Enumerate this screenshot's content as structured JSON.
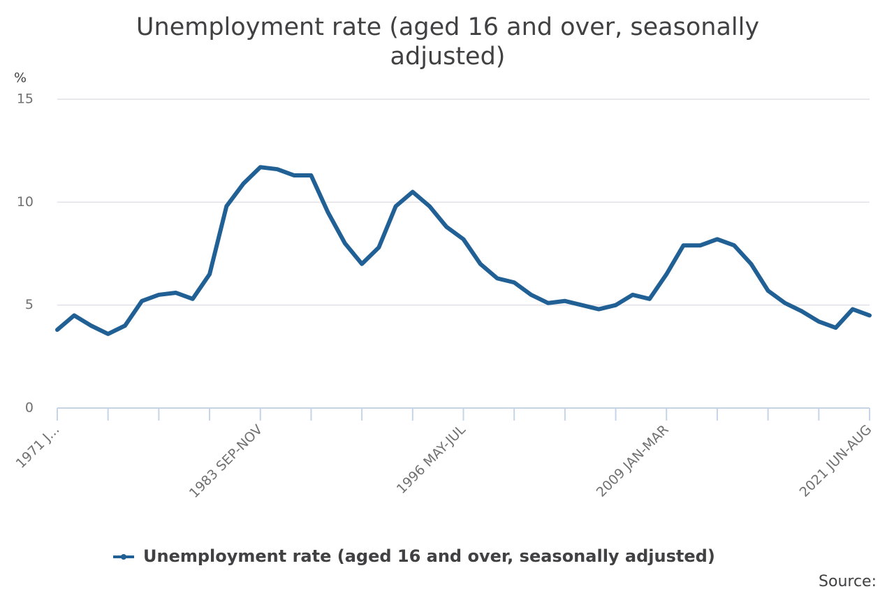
{
  "chart_data": {
    "type": "line",
    "title": "Unemployment rate (aged 16 and over, seasonally adjusted)",
    "y_unit": "%",
    "source": "Source:",
    "categories": [
      "1971 J...",
      null,
      null,
      null,
      null,
      null,
      null,
      null,
      null,
      null,
      null,
      null,
      "1983 SEP-NOV",
      null,
      null,
      null,
      null,
      null,
      null,
      null,
      null,
      null,
      null,
      null,
      "1996 MAY-JUL",
      null,
      null,
      null,
      null,
      null,
      null,
      null,
      null,
      null,
      null,
      null,
      "2009 JAN-MAR",
      null,
      null,
      null,
      null,
      null,
      null,
      null,
      null,
      null,
      null,
      null,
      "2021 JUN-AUG"
    ],
    "series": [
      {
        "name": "Unemployment rate (aged 16 and over, seasonally adjusted)",
        "color": "#206095",
        "values": [
          3.8,
          4.5,
          4.0,
          3.6,
          4.0,
          5.2,
          5.5,
          5.6,
          5.3,
          6.5,
          9.8,
          10.9,
          11.7,
          11.6,
          11.3,
          11.3,
          9.5,
          8.0,
          7.0,
          7.8,
          9.8,
          10.5,
          9.8,
          8.8,
          8.2,
          7.0,
          6.3,
          6.1,
          5.5,
          5.1,
          5.2,
          5.0,
          4.8,
          5.0,
          5.5,
          5.3,
          6.5,
          7.9,
          7.9,
          8.2,
          7.9,
          7.0,
          5.7,
          5.1,
          4.7,
          4.2,
          3.9,
          4.8,
          4.5
        ]
      }
    ],
    "ylim": [
      0,
      15
    ],
    "yticks": [
      0,
      5,
      10,
      15
    ],
    "grid": true,
    "legend": "bottom"
  }
}
